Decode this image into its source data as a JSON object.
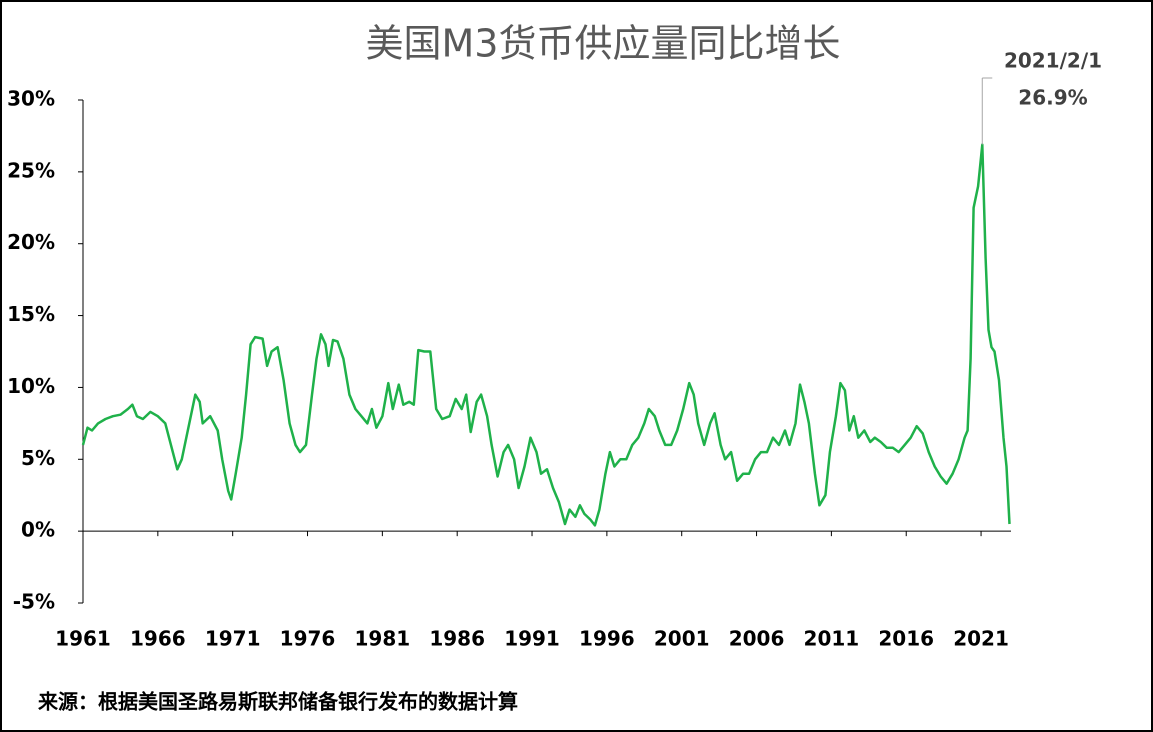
{
  "chart_data": {
    "type": "line",
    "title": "美国M3货币供应量同比增长",
    "source": "来源：根据美国圣路易斯联邦储备银行发布的数据计算",
    "color": "#1fb14a",
    "x": [
      1961.0,
      1961.3,
      1961.6,
      1962,
      1962.5,
      1963,
      1963.5,
      1964,
      1964.3,
      1964.6,
      1965,
      1965.5,
      1966,
      1966.5,
      1967,
      1967.3,
      1967.6,
      1968,
      1968.5,
      1968.8,
      1969,
      1969.5,
      1970,
      1970.3,
      1970.7,
      1970.9,
      1971.2,
      1971.6,
      1971.9,
      1972.2,
      1972.5,
      1973,
      1973.3,
      1973.6,
      1974,
      1974.4,
      1974.8,
      1975.2,
      1975.5,
      1975.9,
      1976.3,
      1976.6,
      1976.9,
      1977.2,
      1977.4,
      1977.7,
      1978,
      1978.4,
      1978.8,
      1979.2,
      1979.6,
      1980,
      1980.3,
      1980.6,
      1981,
      1981.4,
      1981.7,
      1982.1,
      1982.4,
      1982.8,
      1983.1,
      1983.4,
      1983.8,
      1984.2,
      1984.6,
      1985,
      1985.5,
      1985.9,
      1986.3,
      1986.6,
      1986.9,
      1987.3,
      1987.6,
      1988,
      1988.3,
      1988.7,
      1989.1,
      1989.4,
      1989.8,
      1990.1,
      1990.5,
      1990.9,
      1991.3,
      1991.6,
      1992,
      1992.4,
      1992.8,
      1993.2,
      1993.5,
      1993.9,
      1994.2,
      1994.5,
      1994.9,
      1995.2,
      1995.5,
      1995.9,
      1996.2,
      1996.5,
      1996.9,
      1997.3,
      1997.7,
      1998.1,
      1998.5,
      1998.8,
      1999.2,
      1999.5,
      1999.9,
      2000.3,
      2000.7,
      2001.1,
      2001.5,
      2001.8,
      2002.1,
      2002.5,
      2002.9,
      2003.2,
      2003.6,
      2003.9,
      2004.3,
      2004.7,
      2005.1,
      2005.5,
      2005.9,
      2006.3,
      2006.7,
      2007.1,
      2007.5,
      2007.9,
      2008.2,
      2008.6,
      2008.9,
      2009.2,
      2009.5,
      2009.9,
      2010.2,
      2010.6,
      2010.9,
      2011.3,
      2011.6,
      2011.9,
      2012.2,
      2012.5,
      2012.8,
      2013.2,
      2013.6,
      2013.9,
      2014.3,
      2014.7,
      2015.1,
      2015.5,
      2015.9,
      2016.3,
      2016.7,
      2017.1,
      2017.5,
      2017.9,
      2018.3,
      2018.7,
      2019.1,
      2019.5,
      2019.9,
      2020.1,
      2020.3,
      2020.5,
      2020.8,
      2021.08,
      2021.3,
      2021.5,
      2021.7,
      2021.9,
      2022.2,
      2022.5,
      2022.7,
      2022.9
    ],
    "values": [
      6.0,
      7.2,
      7.0,
      7.5,
      7.8,
      8.0,
      8.1,
      8.5,
      8.8,
      8.0,
      7.8,
      8.3,
      8.0,
      7.5,
      5.5,
      4.3,
      5.0,
      7.0,
      9.5,
      9.0,
      7.5,
      8.0,
      7.0,
      5.0,
      2.8,
      2.2,
      4.0,
      6.5,
      9.5,
      13.0,
      13.5,
      13.4,
      11.5,
      12.5,
      12.8,
      10.5,
      7.5,
      6.0,
      5.5,
      6.0,
      9.5,
      12.0,
      13.7,
      13.0,
      11.5,
      13.3,
      13.2,
      12.0,
      9.5,
      8.5,
      8.0,
      7.5,
      8.5,
      7.2,
      8.0,
      10.3,
      8.5,
      10.2,
      8.8,
      9.0,
      8.8,
      12.6,
      12.5,
      12.5,
      8.5,
      7.8,
      8.0,
      9.2,
      8.5,
      9.5,
      6.9,
      9.0,
      9.5,
      8.0,
      6.0,
      3.8,
      5.5,
      6.0,
      5.0,
      3.0,
      4.5,
      6.5,
      5.5,
      4.0,
      4.3,
      3.0,
      2.0,
      0.5,
      1.5,
      1.0,
      1.8,
      1.2,
      0.8,
      0.4,
      1.5,
      4.0,
      5.5,
      4.5,
      5.0,
      5.0,
      6.0,
      6.5,
      7.5,
      8.5,
      8.0,
      7.0,
      6.0,
      6.0,
      7.0,
      8.5,
      10.3,
      9.5,
      7.5,
      6.0,
      7.5,
      8.2,
      6.0,
      5.0,
      5.5,
      3.5,
      4.0,
      4.0,
      5.0,
      5.5,
      5.5,
      6.5,
      6.0,
      7.0,
      6.0,
      7.5,
      10.2,
      9.0,
      7.5,
      4.0,
      1.8,
      2.5,
      5.5,
      8.0,
      10.3,
      9.8,
      7.0,
      8.0,
      6.5,
      7.0,
      6.2,
      6.5,
      6.2,
      5.8,
      5.8,
      5.5,
      6.0,
      6.5,
      7.3,
      6.8,
      5.5,
      4.5,
      3.8,
      3.3,
      4.0,
      5.0,
      6.5,
      7.0,
      12.0,
      22.5,
      24.0,
      26.9,
      19.0,
      14.0,
      12.8,
      12.5,
      10.5,
      6.5,
      4.5,
      0.5
    ],
    "xlim": [
      1961,
      2023
    ],
    "xticks": [
      1961,
      1966,
      1971,
      1976,
      1981,
      1986,
      1991,
      1996,
      2001,
      2006,
      2011,
      2016,
      2021
    ],
    "ylim": [
      -5,
      30
    ],
    "yticks": [
      {
        "value": -5,
        "label": "-5%"
      },
      {
        "value": 0,
        "label": "0%"
      },
      {
        "value": 5,
        "label": "5%"
      },
      {
        "value": 10,
        "label": "10%"
      },
      {
        "value": 15,
        "label": "15%"
      },
      {
        "value": 20,
        "label": "20%"
      },
      {
        "value": 25,
        "label": "25%"
      },
      {
        "value": 30,
        "label": "30%"
      }
    ],
    "grid": false,
    "annotation": {
      "x": 2021.08,
      "value": 26.9,
      "date": "2021/2/1",
      "label": "26.9%"
    }
  }
}
